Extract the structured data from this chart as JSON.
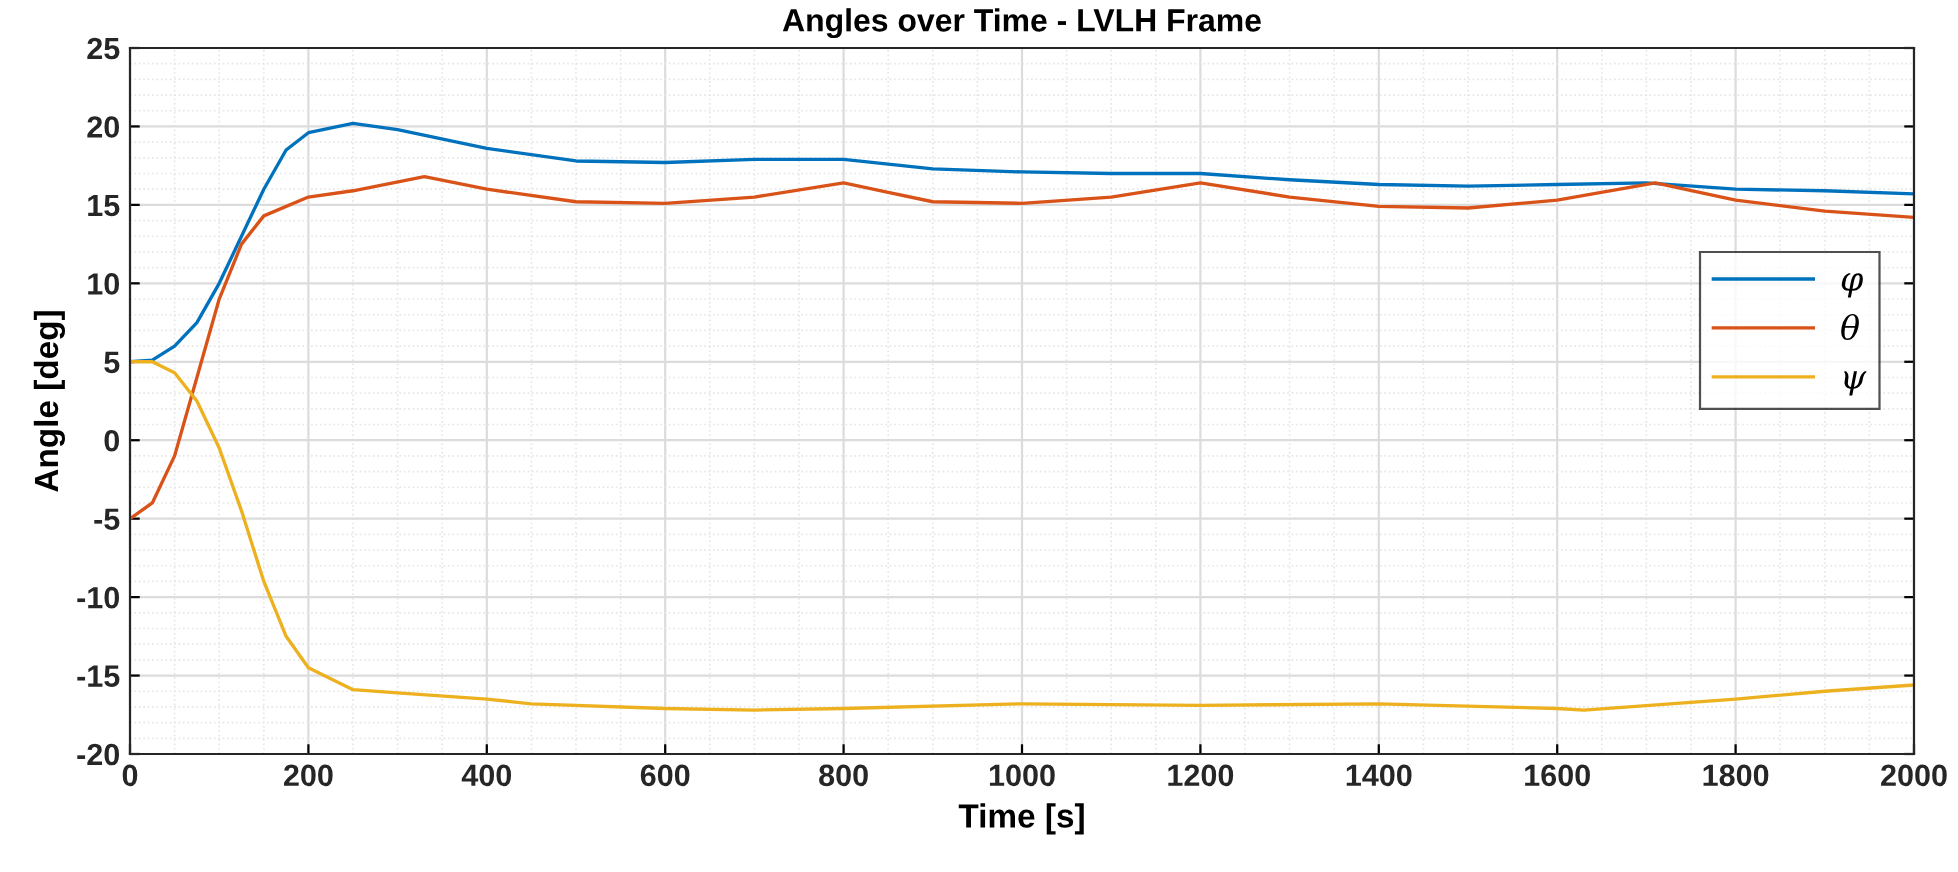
{
  "chart_data": {
    "type": "line",
    "title": "Angles over Time - LVLH Frame",
    "xlabel": "Time [s]",
    "ylabel": "Angle [deg]",
    "xlim": [
      0,
      2000
    ],
    "xticks": [
      0,
      200,
      400,
      600,
      800,
      1000,
      1200,
      1400,
      1600,
      1800,
      2000
    ],
    "ylim": [
      -20,
      25
    ],
    "yticks": [
      -20,
      -15,
      -10,
      -5,
      0,
      5,
      10,
      15,
      20,
      25
    ],
    "grid": true,
    "legend": "right",
    "line_style": "solid",
    "marker": "none",
    "series": [
      {
        "name": "φ",
        "color": "#0072bd",
        "x": [
          0,
          25,
          50,
          75,
          100,
          125,
          150,
          175,
          200,
          250,
          300,
          400,
          500,
          600,
          700,
          800,
          900,
          1000,
          1100,
          1200,
          1300,
          1400,
          1500,
          1600,
          1700,
          1800,
          1900,
          2000
        ],
        "values": [
          5,
          5.1,
          6,
          7.5,
          10,
          13,
          16,
          18.5,
          19.6,
          20.2,
          19.8,
          18.6,
          17.8,
          17.7,
          17.9,
          17.9,
          17.3,
          17.1,
          17.0,
          17.0,
          16.6,
          16.3,
          16.2,
          16.3,
          16.4,
          16.0,
          15.9,
          15.7
        ]
      },
      {
        "name": "θ",
        "color": "#d95319",
        "x": [
          0,
          25,
          50,
          75,
          100,
          125,
          150,
          200,
          250,
          330,
          400,
          500,
          600,
          700,
          800,
          850,
          900,
          1000,
          1100,
          1200,
          1300,
          1400,
          1500,
          1600,
          1710,
          1800,
          1900,
          2000
        ],
        "values": [
          -5,
          -4,
          -1,
          4,
          9,
          12.5,
          14.3,
          15.5,
          15.9,
          16.8,
          16.0,
          15.2,
          15.1,
          15.5,
          16.4,
          15.8,
          15.2,
          15.1,
          15.5,
          16.4,
          15.5,
          14.9,
          14.8,
          15.3,
          16.4,
          15.3,
          14.6,
          14.2
        ]
      },
      {
        "name": "ψ",
        "color": "#edb120",
        "x": [
          0,
          25,
          50,
          75,
          100,
          125,
          150,
          175,
          200,
          250,
          300,
          400,
          450,
          600,
          700,
          800,
          1000,
          1200,
          1400,
          1600,
          1630,
          1800,
          1900,
          2000
        ],
        "values": [
          5,
          5,
          4.3,
          2.5,
          -0.5,
          -4.5,
          -9,
          -12.5,
          -14.5,
          -15.9,
          -16.1,
          -16.5,
          -16.8,
          -17.1,
          -17.2,
          -17.1,
          -16.8,
          -16.9,
          -16.8,
          -17.1,
          -17.2,
          -16.5,
          -16.0,
          -15.6
        ]
      }
    ]
  }
}
